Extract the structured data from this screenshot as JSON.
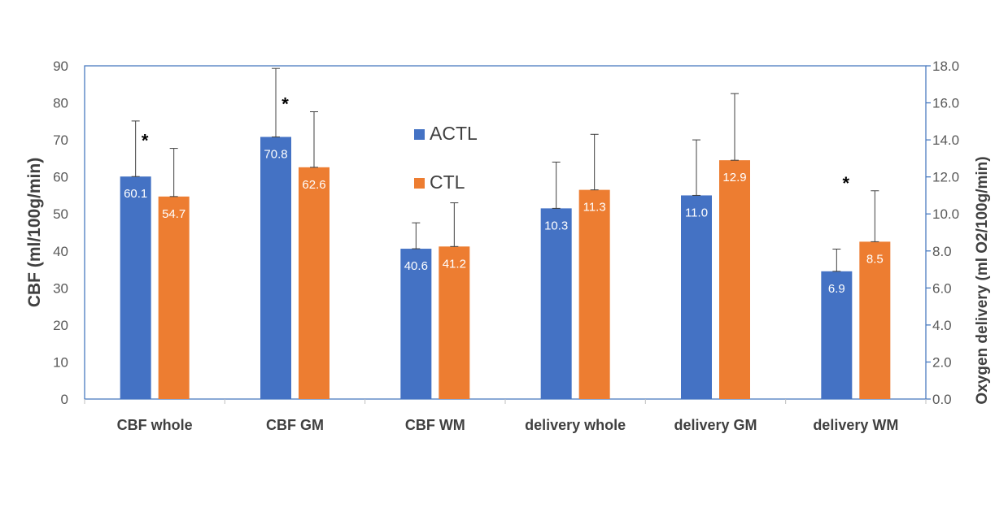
{
  "chart_data": {
    "type": "bar",
    "categories": [
      "CBF whole",
      "CBF GM",
      "CBF WM",
      "delivery whole",
      "delivery GM",
      "delivery WM"
    ],
    "series": [
      {
        "name": "ACTL",
        "color": "#4472C4",
        "values": [
          60.1,
          70.8,
          40.6,
          10.3,
          11.0,
          6.9
        ],
        "labels": [
          "60.1",
          "70.8",
          "40.6",
          "10.3",
          "11.0",
          "6.9"
        ],
        "error": [
          15,
          18.5,
          7,
          2.5,
          3,
          1.2
        ],
        "axis": [
          "left",
          "left",
          "left",
          "right",
          "right",
          "right"
        ]
      },
      {
        "name": "CTL",
        "color": "#ED7D31",
        "values": [
          54.7,
          62.6,
          41.2,
          11.3,
          12.9,
          8.5
        ],
        "labels": [
          "54.7",
          "62.6",
          "41.2",
          "11.3",
          "12.9",
          "8.5"
        ],
        "error": [
          13,
          15,
          11.8,
          3,
          3.6,
          2.75
        ],
        "axis": [
          "left",
          "left",
          "left",
          "right",
          "right",
          "right"
        ]
      }
    ],
    "significance_markers": [
      {
        "category": "CBF whole",
        "text": "*"
      },
      {
        "category": "CBF GM",
        "text": "*"
      },
      {
        "category": "delivery WM",
        "text": "*"
      }
    ],
    "y_left": {
      "label": "CBF (ml/100g/min)",
      "ylim": [
        0,
        90
      ],
      "ticks": [
        "0",
        "10",
        "20",
        "30",
        "40",
        "50",
        "60",
        "70",
        "80",
        "90"
      ]
    },
    "y_right": {
      "label": "Oxygen delivery (ml O2/100g/min)",
      "ylim": [
        0,
        18
      ],
      "ticks": [
        "0.0",
        "2.0",
        "4.0",
        "6.0",
        "8.0",
        "10.0",
        "12.0",
        "14.0",
        "16.0",
        "18.0"
      ]
    },
    "legend": {
      "position": "center-upper",
      "items": [
        "ACTL",
        "CTL"
      ]
    },
    "grid": false
  }
}
